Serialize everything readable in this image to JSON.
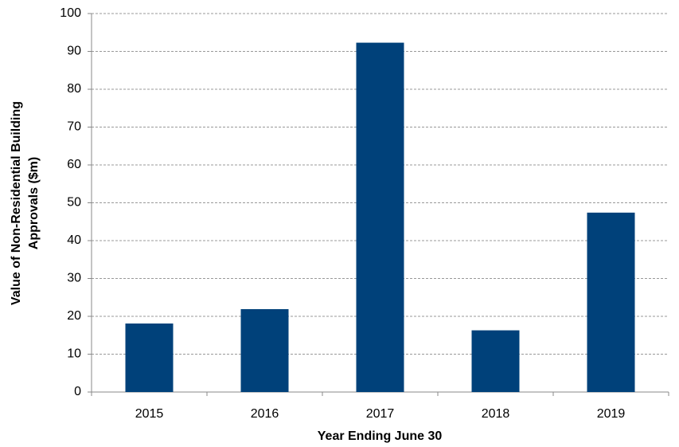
{
  "chart_data": {
    "type": "bar",
    "categories": [
      "2015",
      "2016",
      "2017",
      "2018",
      "2019"
    ],
    "values": [
      18.1,
      21.9,
      92.3,
      16.3,
      47.4
    ],
    "color": "#00417a",
    "xlabel": "Year Ending June 30",
    "ylabel": [
      "Value of Non-Residential Building",
      "Approvals ($m)"
    ],
    "ylim": [
      0,
      100
    ],
    "yticks": [
      0,
      10,
      20,
      30,
      40,
      50,
      60,
      70,
      80,
      90,
      100
    ],
    "grid": true
  }
}
